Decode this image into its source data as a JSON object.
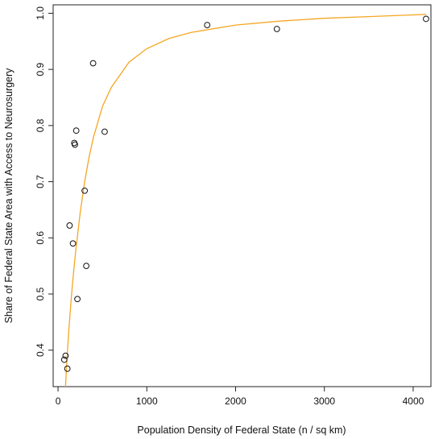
{
  "chart_data": {
    "type": "scatter",
    "xlabel": "Population Density of Federal State (n / sq km)",
    "ylabel": "Share of Federal State Area with Access to Neurosurgery",
    "xlim": [
      -55,
      4200
    ],
    "ylim": [
      0.335,
      1.015
    ],
    "x_ticks": [
      0,
      1000,
      2000,
      3000,
      4000
    ],
    "y_ticks": [
      0.4,
      0.5,
      0.6,
      0.7,
      0.8,
      0.9,
      1.0
    ],
    "x_tick_labels": [
      "0",
      "1000",
      "2000",
      "3000",
      "4000"
    ],
    "y_tick_labels": [
      "0.4",
      "0.5",
      "0.6",
      "0.7",
      "0.8",
      "0.9",
      "1.0"
    ],
    "grid": false,
    "points": [
      {
        "x": 70,
        "y": 0.383
      },
      {
        "x": 85,
        "y": 0.39
      },
      {
        "x": 105,
        "y": 0.367
      },
      {
        "x": 130,
        "y": 0.622
      },
      {
        "x": 168,
        "y": 0.59
      },
      {
        "x": 183,
        "y": 0.769
      },
      {
        "x": 190,
        "y": 0.766
      },
      {
        "x": 205,
        "y": 0.791
      },
      {
        "x": 218,
        "y": 0.491
      },
      {
        "x": 300,
        "y": 0.684
      },
      {
        "x": 318,
        "y": 0.55
      },
      {
        "x": 395,
        "y": 0.911
      },
      {
        "x": 525,
        "y": 0.789
      },
      {
        "x": 1680,
        "y": 0.979
      },
      {
        "x": 2465,
        "y": 0.972
      },
      {
        "x": 4145,
        "y": 0.99
      }
    ],
    "fit_line": {
      "color": "#f5a623",
      "x": [
        80,
        100,
        120,
        140,
        160,
        180,
        200,
        250,
        300,
        350,
        400,
        500,
        600,
        800,
        1000,
        1250,
        1500,
        2000,
        2500,
        3000,
        3500,
        4000,
        4145
      ],
      "y": [
        0.323,
        0.383,
        0.432,
        0.475,
        0.513,
        0.547,
        0.578,
        0.645,
        0.7,
        0.744,
        0.78,
        0.834,
        0.868,
        0.913,
        0.937,
        0.955,
        0.966,
        0.979,
        0.986,
        0.991,
        0.994,
        0.997,
        0.998
      ]
    }
  }
}
